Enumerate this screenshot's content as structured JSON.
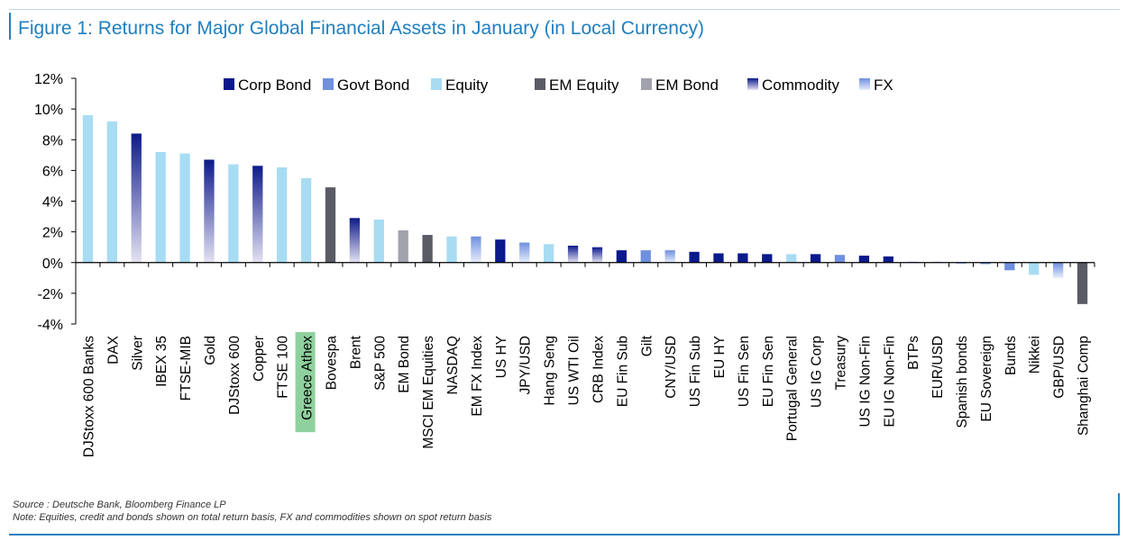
{
  "title": "Figure 1: Returns for Major Global Financial Assets in January (in Local Currency)",
  "source": "Source : Deutsche Bank, Bloomberg Finance LP",
  "note": "Note: Equities, credit and bonds shown on total return basis, FX and commodities shown on spot return basis",
  "colors": {
    "title": "#1f7fc0",
    "corp_bond": "#0a1a8c",
    "govt_bond": "#6f8fe0",
    "equity": "#a8dcf3",
    "em_equity": "#5b5b66",
    "em_bond": "#a2a2ac",
    "commodity_top": "#0d1a8a",
    "commodity_bottom": "#e4e2f2",
    "fx_top": "#6f8fe0",
    "fx_bottom": "#e6edfa",
    "highlight_label": "#8fd19e"
  },
  "chart_data": {
    "type": "bar",
    "ylim": [
      -4,
      12
    ],
    "yticks": [
      -4,
      -2,
      0,
      2,
      4,
      6,
      8,
      10,
      12
    ],
    "ytick_format": "%",
    "legend_position": "top",
    "legend": [
      {
        "name": "Corp Bond",
        "key": "corp"
      },
      {
        "name": "Govt Bond",
        "key": "govt"
      },
      {
        "name": "Equity",
        "key": "equity"
      },
      {
        "name": "EM Equity",
        "key": "emeq"
      },
      {
        "name": "EM Bond",
        "key": "embond"
      },
      {
        "name": "Commodity",
        "key": "commodity"
      },
      {
        "name": "FX",
        "key": "fx"
      }
    ],
    "highlighted_category": "Greece Athex",
    "bars": [
      {
        "label": "DJStoxx 600 Banks",
        "value": 9.6,
        "category": "equity"
      },
      {
        "label": "DAX",
        "value": 9.2,
        "category": "equity"
      },
      {
        "label": "Silver",
        "value": 8.4,
        "category": "commodity"
      },
      {
        "label": "IBEX 35",
        "value": 7.2,
        "category": "equity"
      },
      {
        "label": "FTSE-MIB",
        "value": 7.1,
        "category": "equity"
      },
      {
        "label": "Gold",
        "value": 6.7,
        "category": "commodity"
      },
      {
        "label": "DJStoxx 600",
        "value": 6.4,
        "category": "equity"
      },
      {
        "label": "Copper",
        "value": 6.3,
        "category": "commodity"
      },
      {
        "label": "FTSE 100",
        "value": 6.2,
        "category": "equity"
      },
      {
        "label": "Greece Athex",
        "value": 5.5,
        "category": "equity"
      },
      {
        "label": "Bovespa",
        "value": 4.9,
        "category": "emeq"
      },
      {
        "label": "Brent",
        "value": 2.9,
        "category": "commodity"
      },
      {
        "label": "S&P 500",
        "value": 2.8,
        "category": "equity"
      },
      {
        "label": "EM Bond",
        "value": 2.1,
        "category": "embond"
      },
      {
        "label": "MSCI EM Equities",
        "value": 1.8,
        "category": "emeq"
      },
      {
        "label": "NASDAQ",
        "value": 1.7,
        "category": "equity"
      },
      {
        "label": "EM FX Index",
        "value": 1.7,
        "category": "fx"
      },
      {
        "label": "US HY",
        "value": 1.5,
        "category": "corp"
      },
      {
        "label": "JPY/USD",
        "value": 1.3,
        "category": "fx"
      },
      {
        "label": "Hang Seng",
        "value": 1.2,
        "category": "equity"
      },
      {
        "label": "US WTI Oil",
        "value": 1.1,
        "category": "commodity"
      },
      {
        "label": "CRB Index",
        "value": 1.0,
        "category": "commodity"
      },
      {
        "label": "EU Fin Sub",
        "value": 0.8,
        "category": "corp"
      },
      {
        "label": "Gilt",
        "value": 0.8,
        "category": "govt"
      },
      {
        "label": "CNY/USD",
        "value": 0.8,
        "category": "fx"
      },
      {
        "label": "US Fin Sub",
        "value": 0.7,
        "category": "corp"
      },
      {
        "label": "EU HY",
        "value": 0.6,
        "category": "corp"
      },
      {
        "label": "US Fin Sen",
        "value": 0.6,
        "category": "corp"
      },
      {
        "label": "EU Fin Sen",
        "value": 0.55,
        "category": "corp"
      },
      {
        "label": "Portugal General",
        "value": 0.55,
        "category": "equity"
      },
      {
        "label": "US IG Corp",
        "value": 0.55,
        "category": "corp"
      },
      {
        "label": "Treasury",
        "value": 0.5,
        "category": "govt"
      },
      {
        "label": "US IG Non-Fin",
        "value": 0.45,
        "category": "corp"
      },
      {
        "label": "EU IG Non-Fin",
        "value": 0.4,
        "category": "corp"
      },
      {
        "label": "BTPs",
        "value": 0.05,
        "category": "govt"
      },
      {
        "label": "EUR/USD",
        "value": 0.05,
        "category": "fx"
      },
      {
        "label": "Spanish bonds",
        "value": 0.0,
        "category": "govt"
      },
      {
        "label": "EU Sovereign",
        "value": -0.1,
        "category": "govt"
      },
      {
        "label": "Bunds",
        "value": -0.5,
        "category": "govt"
      },
      {
        "label": "Nikkei",
        "value": -0.8,
        "category": "equity"
      },
      {
        "label": "GBP/USD",
        "value": -1.0,
        "category": "fx"
      },
      {
        "label": "Shanghai Comp",
        "value": -2.7,
        "category": "emeq"
      }
    ]
  }
}
